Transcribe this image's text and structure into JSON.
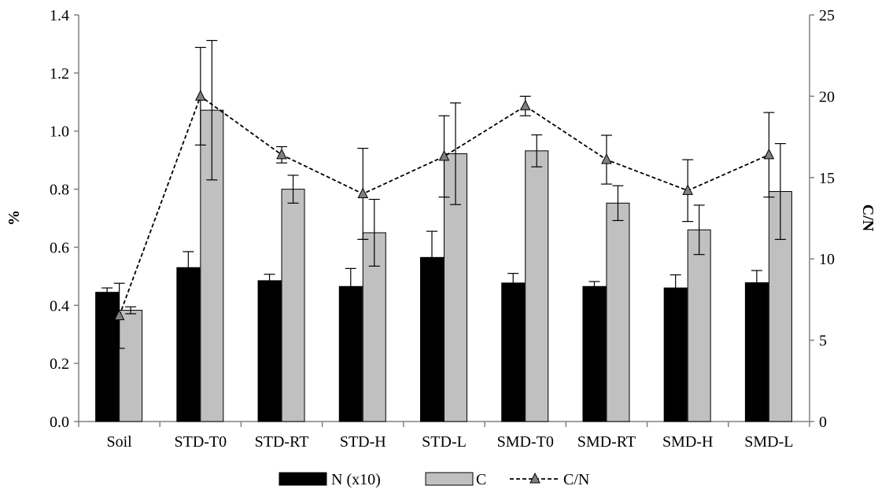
{
  "chart_data": {
    "type": "bar",
    "title": "",
    "xlabel": "",
    "ylabel": "%",
    "y2label": "C/N",
    "ylim": [
      0,
      1.4
    ],
    "y2lim": [
      0,
      25
    ],
    "yticks": [
      "0.0",
      "0.2",
      "0.4",
      "0.6",
      "0.8",
      "1.0",
      "1.2",
      "1.4"
    ],
    "y2ticks": [
      "0",
      "5",
      "10",
      "15",
      "20",
      "25"
    ],
    "categories": [
      "Soil",
      "STD-T0",
      "STD-RT",
      "STD-H",
      "STD-L",
      "SMD-T0",
      "SMD-RT",
      "SMD-H",
      "SMD-L"
    ],
    "legend_position": "bottom",
    "grid": false,
    "series": [
      {
        "name": "N (x10)",
        "type": "bar",
        "axis": "left",
        "color": "#000000",
        "values": [
          0.445,
          0.53,
          0.485,
          0.465,
          0.565,
          0.477,
          0.465,
          0.46,
          0.478
        ],
        "errors": [
          0.015,
          0.055,
          0.022,
          0.062,
          0.09,
          0.033,
          0.017,
          0.045,
          0.042
        ]
      },
      {
        "name": "C",
        "type": "bar",
        "axis": "left",
        "color": "#c0c0c0",
        "values": [
          0.383,
          1.072,
          0.8,
          0.65,
          0.922,
          0.932,
          0.752,
          0.66,
          0.792
        ],
        "errors": [
          0.012,
          0.24,
          0.048,
          0.115,
          0.175,
          0.055,
          0.06,
          0.085,
          0.165
        ]
      },
      {
        "name": "C/N",
        "type": "line",
        "axis": "right",
        "color": "#000000",
        "values": [
          6.5,
          20.0,
          16.4,
          14.0,
          16.3,
          19.4,
          16.1,
          14.2,
          16.4
        ],
        "errors": [
          2.0,
          3.0,
          0.5,
          2.8,
          2.5,
          0.6,
          1.5,
          1.9,
          2.6
        ]
      }
    ]
  }
}
